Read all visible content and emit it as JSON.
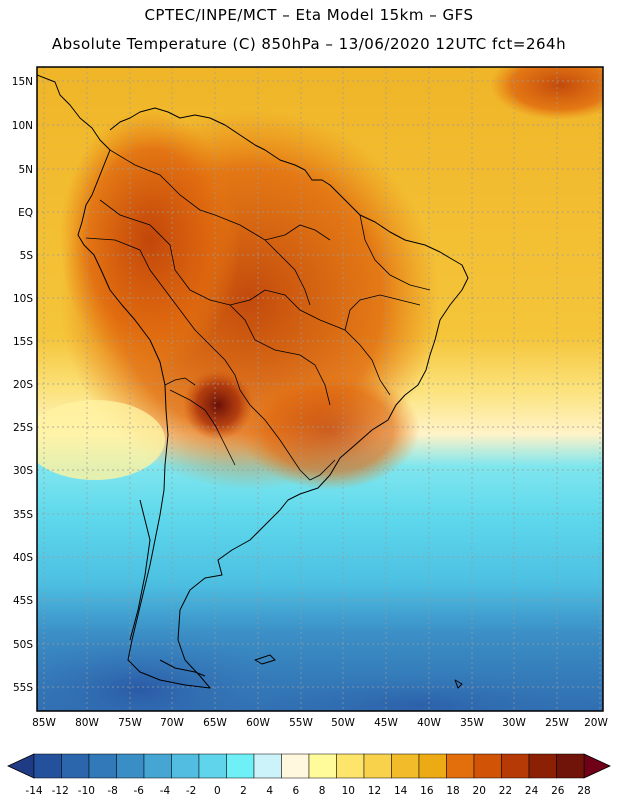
{
  "header": {
    "line1": "CPTEC/INPE/MCT –  Eta Model 15km – GFS",
    "line2": "Absolute Temperature (C) 850hPa – 13/06/2020 12UTC fct=264h"
  },
  "map": {
    "lat_labels": [
      "15N",
      "10N",
      "5N",
      "EQ",
      "5S",
      "10S",
      "15S",
      "20S",
      "25S",
      "30S",
      "35S",
      "40S",
      "45S",
      "50S",
      "55S"
    ],
    "lon_labels": [
      "85W",
      "80W",
      "75W",
      "70W",
      "65W",
      "60W",
      "55W",
      "50W",
      "45W",
      "40W",
      "35W",
      "30W",
      "25W",
      "20W"
    ]
  },
  "colorbar": {
    "labels": [
      "-14",
      "-12",
      "-10",
      "-8",
      "-6",
      "-4",
      "-2",
      "0",
      "2",
      "4",
      "6",
      "8",
      "10",
      "12",
      "14",
      "16",
      "18",
      "20",
      "22",
      "24",
      "26",
      "28"
    ],
    "colors": [
      "#1f3b86",
      "#24519c",
      "#2b66ad",
      "#3179b8",
      "#3a8ec6",
      "#45a5d3",
      "#52bde0",
      "#5fd4ea",
      "#6ef0f6",
      "#cdf3fa",
      "#fff7de",
      "#fffa9a",
      "#fde46a",
      "#f7d24a",
      "#f1bb2a",
      "#ecaa14",
      "#e26f0b",
      "#d05306",
      "#b53a05",
      "#8c2004",
      "#70140a",
      "#700018"
    ]
  },
  "colors": {
    "frame": "#000000",
    "land_line": "#000000"
  }
}
